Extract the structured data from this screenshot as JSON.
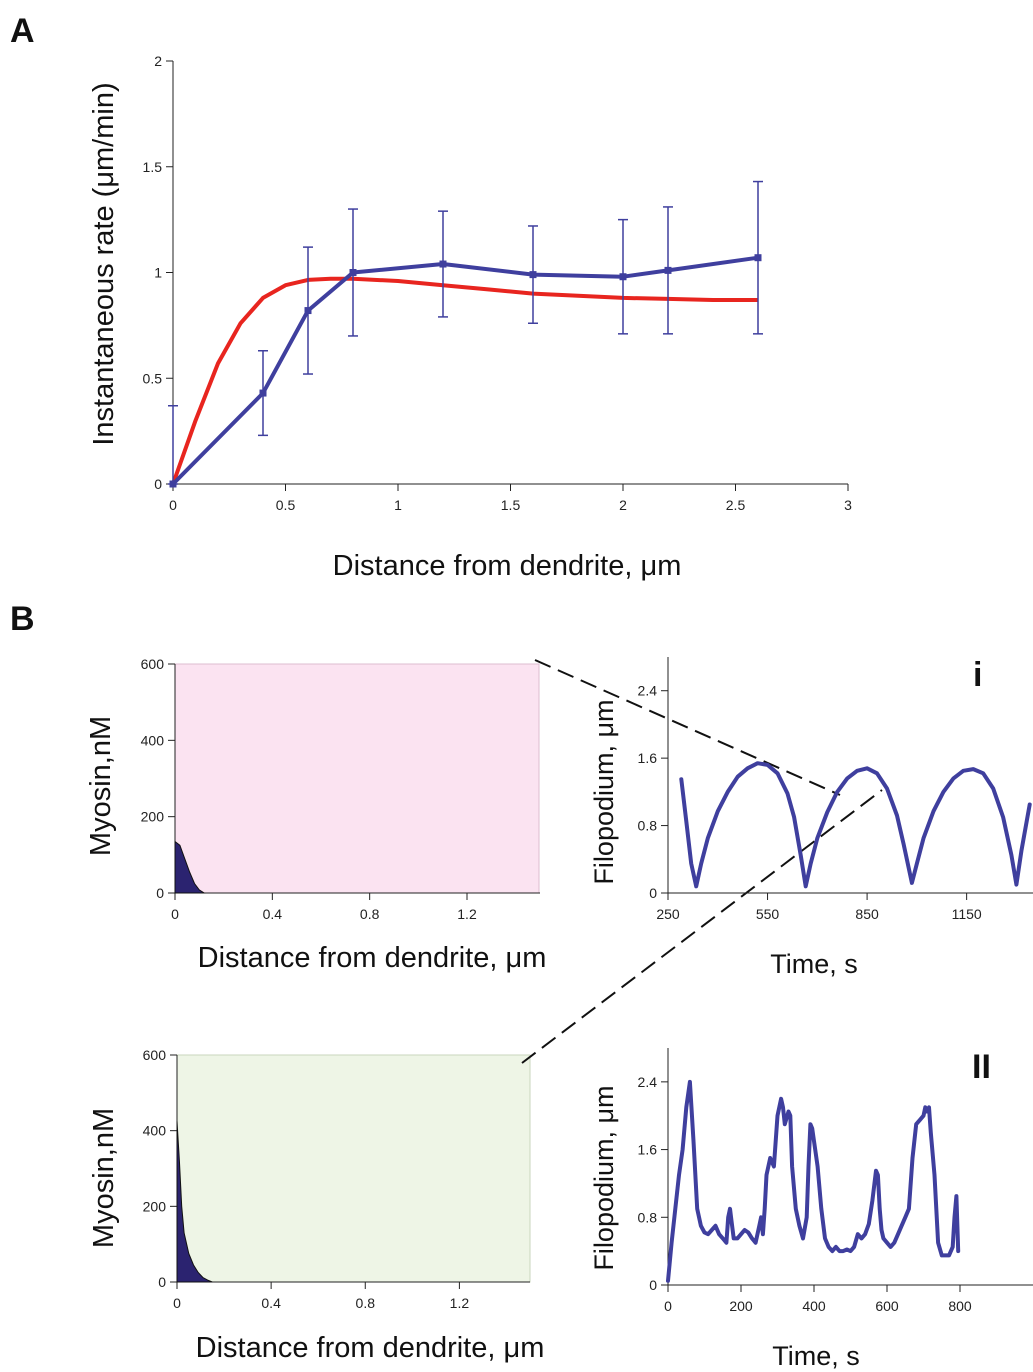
{
  "panels": {
    "A": "A",
    "B": "B",
    "i": "i",
    "ii": "II"
  },
  "colors": {
    "data": "#3f3f9e",
    "model": "#e8251f",
    "pink_bg": "#fbe3f1",
    "green_bg": "#eef5e6",
    "myosin_fill": "#2b2370"
  },
  "chart_data": [
    {
      "id": "A",
      "type": "line",
      "xlabel": "Distance from dendrite, μm",
      "ylabel": "Instantaneous rate (μm/min)",
      "xlim": [
        0,
        3
      ],
      "ylim": [
        0,
        2
      ],
      "xticks": [
        0,
        0.5,
        1,
        1.5,
        2,
        2.5,
        3
      ],
      "yticks": [
        0,
        0.5,
        1,
        1.5,
        2
      ],
      "x_tick_labels": [
        "0",
        "0.5",
        "1",
        "1.5",
        "2",
        "2.5",
        "3"
      ],
      "y_tick_labels": [
        "0",
        "0.5",
        "1",
        "1.5",
        "2"
      ],
      "series": [
        {
          "kind": "errorbar",
          "color": "#3f3f9e",
          "x": [
            0,
            0.4,
            0.6,
            0.8,
            1.2,
            1.6,
            2.0,
            2.2,
            2.6
          ],
          "y": [
            0,
            0.43,
            0.82,
            1.0,
            1.04,
            0.99,
            0.98,
            1.01,
            1.07
          ],
          "err": [
            0.37,
            0.2,
            0.3,
            0.3,
            0.25,
            0.23,
            0.27,
            0.3,
            0.36
          ]
        },
        {
          "kind": "line",
          "color": "#e8251f",
          "x": [
            0,
            0.1,
            0.2,
            0.3,
            0.4,
            0.5,
            0.6,
            0.7,
            0.8,
            1.0,
            1.2,
            1.4,
            1.6,
            1.8,
            2.0,
            2.2,
            2.4,
            2.6
          ],
          "y": [
            0,
            0.3,
            0.57,
            0.76,
            0.88,
            0.94,
            0.965,
            0.97,
            0.97,
            0.96,
            0.94,
            0.92,
            0.9,
            0.89,
            0.88,
            0.875,
            0.87,
            0.87
          ]
        }
      ]
    },
    {
      "id": "B-i-myosin",
      "type": "area",
      "xlabel": "Distance from dendrite, μm",
      "ylabel": "Myosin,nM",
      "xlim": [
        0,
        1.5
      ],
      "ylim": [
        0,
        600
      ],
      "x_tick_labels": [
        "0",
        "0.4",
        "0.8",
        "1.2"
      ],
      "y_tick_labels": [
        "0",
        "200",
        "400",
        "600"
      ],
      "x": [
        0,
        0.02,
        0.04,
        0.06,
        0.08,
        0.1,
        0.12
      ],
      "y": [
        135,
        125,
        90,
        55,
        25,
        8,
        0
      ]
    },
    {
      "id": "B-i-filopodium",
      "type": "line",
      "xlabel": "Time, s",
      "ylabel": "Filopodium, μm",
      "xlim": [
        250,
        1350
      ],
      "ylim": [
        0,
        2.8
      ],
      "x_tick_labels": [
        "250",
        "550",
        "850",
        "1150"
      ],
      "y_tick_labels": [
        "0",
        "0.8",
        "1.6",
        "2.4"
      ],
      "x": [
        290,
        305,
        320,
        335,
        350,
        370,
        400,
        430,
        460,
        490,
        520,
        550,
        580,
        610,
        630,
        650,
        665,
        680,
        700,
        730,
        760,
        790,
        820,
        850,
        880,
        910,
        940,
        960,
        985,
        1000,
        1020,
        1050,
        1080,
        1110,
        1140,
        1170,
        1200,
        1230,
        1260,
        1285,
        1300,
        1315,
        1340
      ],
      "y": [
        1.35,
        0.85,
        0.35,
        0.08,
        0.35,
        0.65,
        0.97,
        1.2,
        1.38,
        1.48,
        1.54,
        1.52,
        1.42,
        1.18,
        0.9,
        0.45,
        0.08,
        0.35,
        0.65,
        0.96,
        1.2,
        1.36,
        1.45,
        1.48,
        1.42,
        1.24,
        0.92,
        0.58,
        0.12,
        0.35,
        0.65,
        0.97,
        1.2,
        1.36,
        1.45,
        1.47,
        1.42,
        1.24,
        0.9,
        0.45,
        0.1,
        0.5,
        1.05
      ]
    },
    {
      "id": "B-ii-myosin",
      "type": "area",
      "xlabel": "Distance from dendrite, μm",
      "ylabel": "Myosin,nM",
      "xlim": [
        0,
        1.5
      ],
      "ylim": [
        0,
        600
      ],
      "x_tick_labels": [
        "0",
        "0.4",
        "0.8",
        "1.2"
      ],
      "y_tick_labels": [
        "0",
        "200",
        "400",
        "600"
      ],
      "x": [
        0,
        0.01,
        0.02,
        0.03,
        0.05,
        0.07,
        0.09,
        0.11,
        0.13,
        0.15
      ],
      "y": [
        425,
        320,
        200,
        130,
        75,
        45,
        25,
        12,
        5,
        0
      ]
    },
    {
      "id": "B-ii-filopodium",
      "type": "line",
      "xlabel": "Time, s",
      "ylabel": "Filopodium, μm",
      "xlim": [
        0,
        1000
      ],
      "ylim": [
        0,
        2.8
      ],
      "x_tick_labels": [
        "0",
        "200",
        "400",
        "600",
        "800"
      ],
      "y_tick_labels": [
        "0",
        "0.8",
        "1.6",
        "2.4"
      ],
      "x": [
        0,
        10,
        20,
        30,
        40,
        50,
        60,
        70,
        80,
        90,
        100,
        110,
        120,
        130,
        140,
        150,
        160,
        165,
        170,
        175,
        180,
        190,
        200,
        210,
        220,
        230,
        240,
        250,
        255,
        260,
        265,
        270,
        280,
        290,
        300,
        310,
        315,
        320,
        330,
        335,
        340,
        350,
        360,
        370,
        380,
        385,
        390,
        395,
        400,
        410,
        420,
        430,
        440,
        450,
        460,
        470,
        480,
        490,
        500,
        510,
        520,
        530,
        540,
        550,
        560,
        570,
        575,
        580,
        585,
        590,
        600,
        610,
        620,
        630,
        640,
        650,
        660,
        670,
        680,
        690,
        700,
        705,
        710,
        715,
        720,
        730,
        740,
        750,
        760,
        770,
        780,
        785,
        790,
        795
      ],
      "y": [
        0.05,
        0.5,
        0.9,
        1.3,
        1.6,
        2.1,
        2.4,
        1.7,
        0.9,
        0.7,
        0.62,
        0.6,
        0.65,
        0.7,
        0.6,
        0.55,
        0.5,
        0.8,
        0.9,
        0.72,
        0.55,
        0.55,
        0.6,
        0.65,
        0.62,
        0.55,
        0.5,
        0.7,
        0.8,
        0.6,
        0.9,
        1.3,
        1.5,
        1.4,
        2.0,
        2.2,
        2.1,
        1.9,
        2.05,
        2.0,
        1.4,
        0.9,
        0.7,
        0.55,
        0.8,
        1.4,
        1.9,
        1.85,
        1.7,
        1.4,
        0.9,
        0.55,
        0.45,
        0.4,
        0.45,
        0.4,
        0.4,
        0.42,
        0.4,
        0.45,
        0.6,
        0.55,
        0.6,
        0.72,
        1.0,
        1.35,
        1.3,
        0.9,
        0.65,
        0.55,
        0.5,
        0.45,
        0.5,
        0.6,
        0.7,
        0.8,
        0.9,
        1.5,
        1.9,
        1.95,
        2.0,
        2.1,
        2.05,
        2.1,
        1.8,
        1.3,
        0.5,
        0.35,
        0.35,
        0.35,
        0.45,
        0.8,
        1.05,
        0.4
      ]
    }
  ]
}
